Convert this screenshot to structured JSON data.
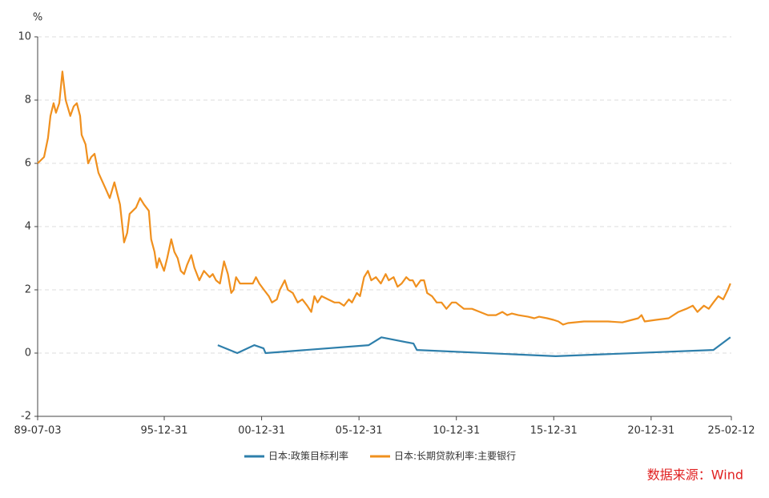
{
  "chart_data": {
    "type": "line",
    "y_unit": "%",
    "source": "数据来源：Wind",
    "xlim": [
      1989.5,
      2025.12
    ],
    "xticks": [
      {
        "value": 1989.5,
        "label": "89-07-03"
      },
      {
        "value": 1996.0,
        "label": "95-12-31"
      },
      {
        "value": 2001.0,
        "label": "00-12-31"
      },
      {
        "value": 2006.0,
        "label": "05-12-31"
      },
      {
        "value": 2011.0,
        "label": "10-12-31"
      },
      {
        "value": 2016.0,
        "label": "15-12-31"
      },
      {
        "value": 2021.0,
        "label": "20-12-31"
      },
      {
        "value": 2025.12,
        "label": "25-02-12"
      }
    ],
    "ylim": [
      -2,
      10
    ],
    "yticks": [
      -2,
      0,
      2,
      4,
      6,
      8,
      10
    ],
    "grid": true,
    "series": [
      {
        "name": "日本:政策目标利率",
        "color": "#2e7fab",
        "x": [
          1998.75,
          1999.75,
          2000.62,
          2001.1,
          2001.2,
          2006.5,
          2007.15,
          2008.8,
          2008.97,
          2016.1,
          2024.2,
          2025.07
        ],
        "values": [
          0.25,
          0,
          0.25,
          0.15,
          0,
          0.25,
          0.5,
          0.3,
          0.1,
          -0.1,
          0.1,
          0.5
        ]
      },
      {
        "name": "日本:长期贷款利率:主要银行",
        "color": "#f0901e",
        "x": [
          1989.5,
          1989.83,
          1990.03,
          1990.16,
          1990.32,
          1990.44,
          1990.61,
          1990.77,
          1990.94,
          1991.18,
          1991.35,
          1991.51,
          1991.68,
          1991.76,
          1991.96,
          1992.09,
          1992.25,
          1992.42,
          1992.62,
          1992.99,
          1993.2,
          1993.44,
          1993.73,
          1993.94,
          1994.1,
          1994.22,
          1994.55,
          1994.76,
          1994.96,
          1995.21,
          1995.33,
          1995.5,
          1995.62,
          1995.74,
          1995.99,
          1996.15,
          1996.36,
          1996.52,
          1996.69,
          1996.85,
          1997.02,
          1997.18,
          1997.39,
          1997.55,
          1997.8,
          1998.04,
          1998.33,
          1998.49,
          1998.66,
          1998.86,
          1999.07,
          1999.27,
          1999.44,
          1999.56,
          1999.69,
          1999.89,
          2000.3,
          2000.55,
          2000.71,
          2000.88,
          2001.12,
          2001.37,
          2001.53,
          2001.78,
          2001.94,
          2002.19,
          2002.35,
          2002.6,
          2002.85,
          2003.09,
          2003.34,
          2003.55,
          2003.71,
          2003.87,
          2004.08,
          2004.41,
          2004.74,
          2004.98,
          2005.23,
          2005.48,
          2005.64,
          2005.89,
          2006.05,
          2006.26,
          2006.46,
          2006.63,
          2006.87,
          2007.12,
          2007.37,
          2007.53,
          2007.78,
          2007.98,
          2008.19,
          2008.43,
          2008.6,
          2008.76,
          2008.93,
          2009.17,
          2009.34,
          2009.5,
          2009.75,
          2009.99,
          2010.24,
          2010.49,
          2010.77,
          2010.98,
          2011.18,
          2011.39,
          2011.8,
          2012.21,
          2012.62,
          2013.03,
          2013.36,
          2013.61,
          2013.85,
          2014.18,
          2014.68,
          2015.0,
          2015.25,
          2015.66,
          2015.99,
          2016.24,
          2016.48,
          2016.73,
          2017.55,
          2018.78,
          2019.52,
          2020.02,
          2020.34,
          2020.51,
          2020.67,
          2021.25,
          2021.9,
          2022.4,
          2022.81,
          2023.14,
          2023.38,
          2023.71,
          2023.96,
          2024.2,
          2024.45,
          2024.7,
          2024.94,
          2025.07
        ],
        "values": [
          6.0,
          6.2,
          6.8,
          7.5,
          7.9,
          7.6,
          7.9,
          8.9,
          8.0,
          7.5,
          7.8,
          7.9,
          7.5,
          6.9,
          6.6,
          6.0,
          6.2,
          6.3,
          5.7,
          5.2,
          4.9,
          5.4,
          4.7,
          3.5,
          3.8,
          4.4,
          4.6,
          4.9,
          4.7,
          4.5,
          3.6,
          3.2,
          2.7,
          3.0,
          2.6,
          3.0,
          3.6,
          3.2,
          3.0,
          2.6,
          2.5,
          2.8,
          3.1,
          2.7,
          2.3,
          2.6,
          2.4,
          2.5,
          2.3,
          2.2,
          2.9,
          2.5,
          1.9,
          2.0,
          2.4,
          2.2,
          2.2,
          2.2,
          2.4,
          2.2,
          2.0,
          1.8,
          1.6,
          1.7,
          2.0,
          2.3,
          2.0,
          1.9,
          1.6,
          1.7,
          1.5,
          1.3,
          1.8,
          1.6,
          1.8,
          1.7,
          1.6,
          1.6,
          1.5,
          1.7,
          1.6,
          1.9,
          1.8,
          2.4,
          2.6,
          2.3,
          2.4,
          2.2,
          2.5,
          2.3,
          2.4,
          2.1,
          2.2,
          2.4,
          2.3,
          2.3,
          2.1,
          2.3,
          2.3,
          1.9,
          1.8,
          1.6,
          1.6,
          1.4,
          1.6,
          1.6,
          1.5,
          1.4,
          1.4,
          1.3,
          1.2,
          1.2,
          1.3,
          1.2,
          1.25,
          1.2,
          1.15,
          1.1,
          1.15,
          1.1,
          1.05,
          1.0,
          0.9,
          0.95,
          1.0,
          1.0,
          0.97,
          1.05,
          1.1,
          1.2,
          1.0,
          1.05,
          1.1,
          1.3,
          1.4,
          1.5,
          1.3,
          1.5,
          1.4,
          1.6,
          1.8,
          1.7,
          2.0,
          2.2
        ]
      }
    ]
  }
}
